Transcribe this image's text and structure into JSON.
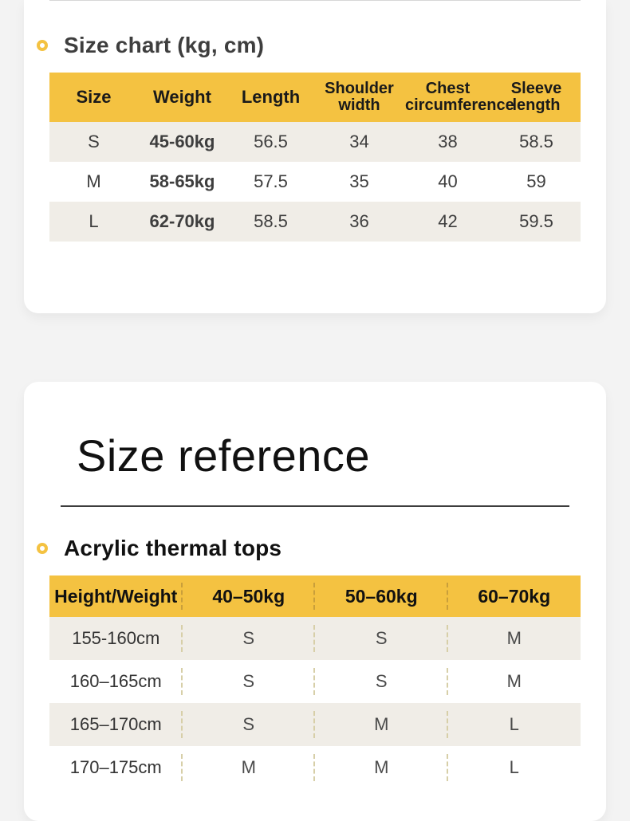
{
  "colors": {
    "page_bg": "#f3f3f3",
    "card_bg": "#ffffff",
    "accent": "#f4c241",
    "row_alt": "#f0ede7",
    "hr": "#3d3d3d",
    "dash": "#c99f3b"
  },
  "size_chart": {
    "title": "Size chart (kg, cm)",
    "columns": [
      "Size",
      "Weight",
      "Length",
      "Shoulder width",
      "Chest circumference",
      "Sleeve length"
    ],
    "rows": [
      {
        "size": "S",
        "weight": "45-60kg",
        "length": "56.5",
        "shoulder": "34",
        "chest": "38",
        "sleeve": "58.5"
      },
      {
        "size": "M",
        "weight": "58-65kg",
        "length": "57.5",
        "shoulder": "35",
        "chest": "40",
        "sleeve": "59"
      },
      {
        "size": "L",
        "weight": "62-70kg",
        "length": "58.5",
        "shoulder": "36",
        "chest": "42",
        "sleeve": "59.5"
      }
    ]
  },
  "size_reference": {
    "heading": "Size reference",
    "subtitle": "Acrylic thermal tops",
    "columns": [
      "Height/Weight",
      "40–50kg",
      "50–60kg",
      "60–70kg"
    ],
    "rows": [
      {
        "h": "155-160cm",
        "a": "S",
        "b": "S",
        "c": "M"
      },
      {
        "h": "160–165cm",
        "a": "S",
        "b": "S",
        "c": "M"
      },
      {
        "h": "165–170cm",
        "a": "S",
        "b": "M",
        "c": "L"
      },
      {
        "h": "170–175cm",
        "a": "M",
        "b": "M",
        "c": "L"
      }
    ]
  }
}
